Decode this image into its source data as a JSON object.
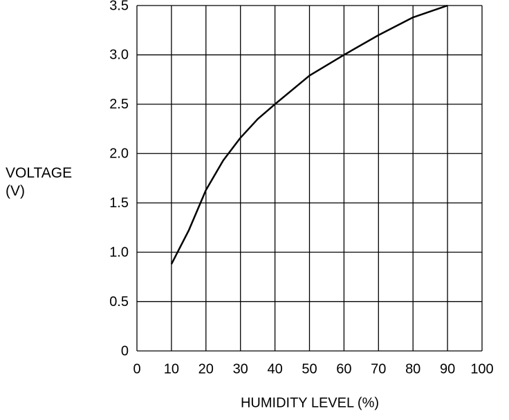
{
  "chart_data": {
    "type": "line",
    "x_label": "HUMIDITY LEVEL (%)",
    "y_label": "VOLTAGE (V)",
    "x": [
      10,
      15,
      20,
      25,
      30,
      35,
      40,
      50,
      60,
      70,
      80,
      90
    ],
    "series": [
      {
        "color": "#000000",
        "values": [
          0.88,
          1.22,
          1.63,
          1.93,
          2.16,
          2.35,
          2.5,
          2.79,
          3.0,
          3.2,
          3.38,
          3.5
        ]
      }
    ],
    "xlim": [
      0,
      100
    ],
    "xticks": [
      0,
      10,
      20,
      30,
      40,
      50,
      60,
      70,
      80,
      90,
      100
    ],
    "ylim": [
      0,
      3.5
    ],
    "yticks": [
      0,
      0.5,
      {
        "value": 1,
        "label": "1.0"
      },
      1.5,
      {
        "value": 2,
        "label": "2.0"
      },
      2.5,
      {
        "value": 3,
        "label": "3.0"
      },
      3.5
    ],
    "grid": true
  }
}
